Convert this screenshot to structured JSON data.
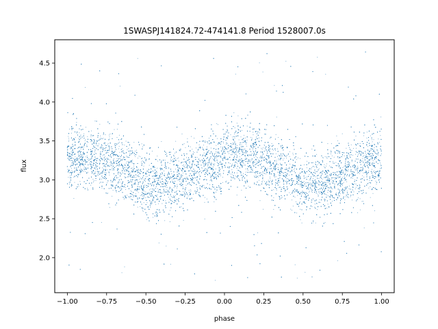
{
  "chart_data": {
    "type": "scatter",
    "title": "1SWASPJ141824.72-474141.8 Period 1528007.0s",
    "xlabel": "phase",
    "ylabel": "flux",
    "xlim": [
      -1.08,
      1.08
    ],
    "ylim": [
      1.55,
      4.8
    ],
    "x_ticks": [
      -1.0,
      -0.75,
      -0.5,
      -0.25,
      0.0,
      0.25,
      0.5,
      0.75,
      1.0
    ],
    "x_tick_labels": [
      "−1.00",
      "−0.75",
      "−0.50",
      "−0.25",
      "0.00",
      "0.25",
      "0.50",
      "0.75",
      "1.00"
    ],
    "y_ticks": [
      2.0,
      2.5,
      3.0,
      3.5,
      4.0,
      4.5
    ],
    "y_tick_labels": [
      "2.0",
      "2.5",
      "3.0",
      "3.5",
      "4.0",
      "4.5"
    ],
    "grid": false,
    "legend": "none",
    "marker_color": "#1f77b4",
    "x_range": [
      -1.0,
      1.0
    ],
    "trend": {
      "x": [
        -1.0,
        -0.9,
        -0.75,
        -0.6,
        -0.5,
        -0.4,
        -0.25,
        -0.1,
        0.0,
        0.1,
        0.25,
        0.4,
        0.5,
        0.6,
        0.75,
        0.9,
        1.0
      ],
      "y": [
        3.25,
        3.3,
        3.25,
        3.1,
        2.9,
        2.95,
        3.05,
        3.2,
        3.25,
        3.3,
        3.25,
        3.1,
        2.9,
        2.95,
        3.05,
        3.2,
        3.25
      ]
    },
    "scatter_std": 0.2,
    "outlier_range": [
      1.7,
      4.65
    ]
  }
}
